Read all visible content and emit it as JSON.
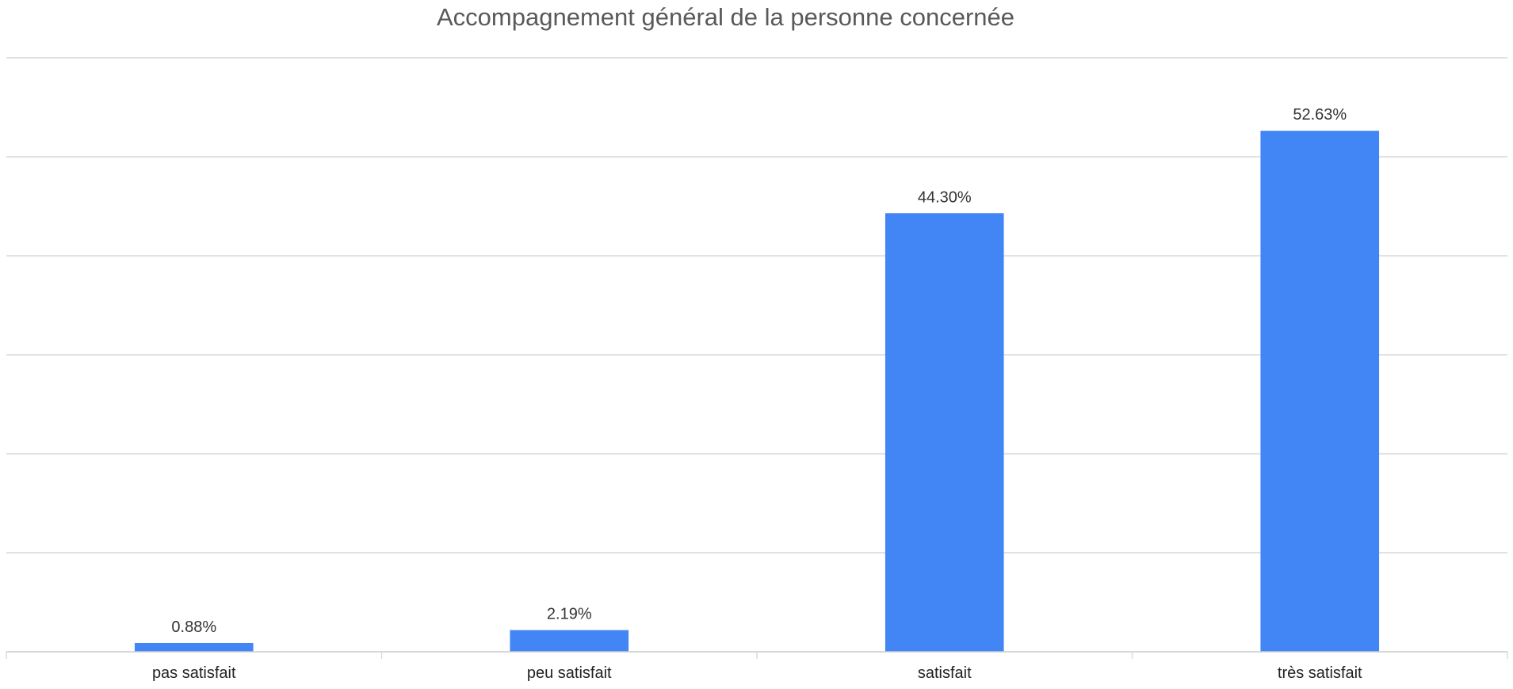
{
  "chart_data": {
    "type": "bar",
    "title": "Accompagnement général de la personne concernée",
    "categories": [
      "pas satisfait",
      "peu satisfait",
      "satisfait",
      "très satisfait"
    ],
    "values": [
      0.88,
      2.19,
      44.3,
      52.63
    ],
    "value_labels": [
      "0.88%",
      "2.19%",
      "44.30%",
      "52.63%"
    ],
    "unit": "%",
    "ylim": [
      0,
      60
    ],
    "yticks": [
      0,
      10,
      20,
      30,
      40,
      50,
      60
    ],
    "ytick_labels_shown": false,
    "grid": true,
    "legend": "none",
    "bar_color": "#4285f4"
  }
}
